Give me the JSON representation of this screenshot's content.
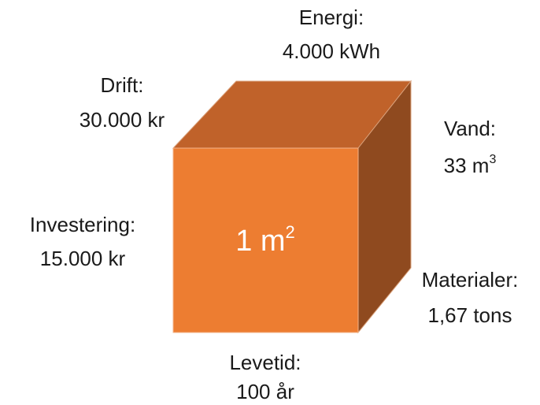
{
  "center": {
    "text": "1 m",
    "sup": "2"
  },
  "labels": {
    "energi": {
      "title": "Energi:",
      "value": "4.000 kWh"
    },
    "drift": {
      "title": "Drift:",
      "value": "30.000 kr"
    },
    "vand": {
      "title": "Vand:",
      "value": "33 m",
      "sup": "3"
    },
    "investering": {
      "title": "Investering:",
      "value": "15.000 kr"
    },
    "materialer": {
      "title": "Materialer:",
      "value": "1,67 tons"
    },
    "levetid": {
      "title": "Levetid:",
      "value": "100 år"
    }
  }
}
